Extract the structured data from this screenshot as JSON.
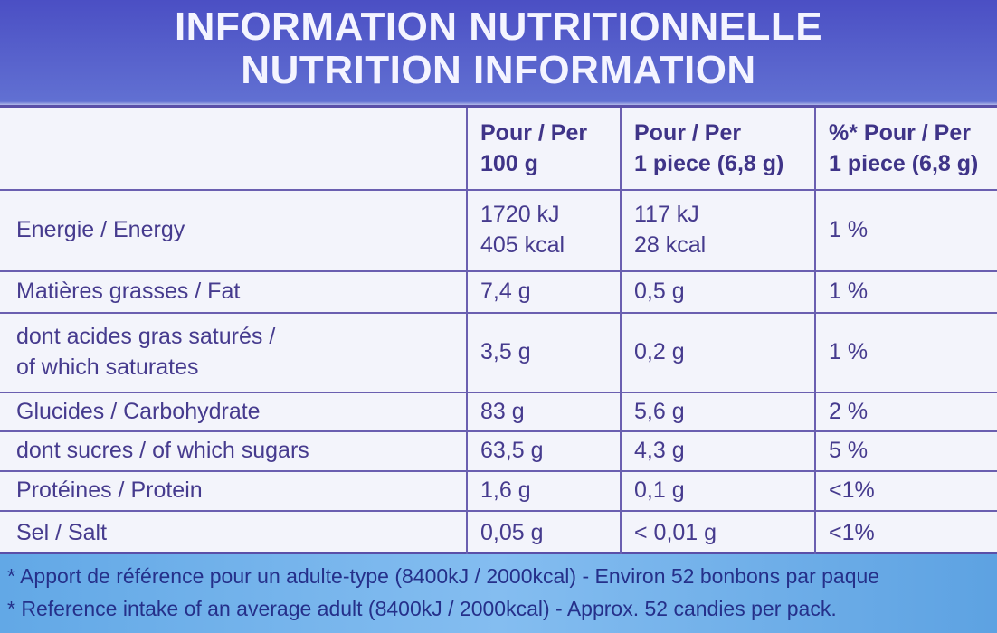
{
  "header": {
    "title_fr": "INFORMATION NUTRITIONNELLE",
    "title_en": "NUTRITION INFORMATION"
  },
  "table": {
    "columns": [
      [
        "Pour / Per",
        "100 g"
      ],
      [
        "Pour / Per",
        "1 piece (6,8 g)"
      ],
      [
        "%* Pour / Per",
        "1 piece (6,8 g)"
      ]
    ],
    "rows": [
      [
        [
          "Energie / Energy"
        ],
        [
          "1720 kJ",
          "405 kcal"
        ],
        [
          "117 kJ",
          "28 kcal"
        ],
        [
          "1 %"
        ]
      ],
      [
        [
          "Matières grasses / Fat"
        ],
        [
          "7,4 g"
        ],
        [
          "0,5 g"
        ],
        [
          "1 %"
        ]
      ],
      [
        [
          "dont acides gras saturés /",
          "of which saturates"
        ],
        [
          "3,5 g"
        ],
        [
          "0,2 g"
        ],
        [
          "1 %"
        ]
      ],
      [
        [
          "Glucides / Carbohydrate"
        ],
        [
          "83 g"
        ],
        [
          "5,6 g"
        ],
        [
          "2 %"
        ]
      ],
      [
        [
          "dont sucres / of which sugars"
        ],
        [
          "63,5 g"
        ],
        [
          "4,3 g"
        ],
        [
          "5 %"
        ]
      ],
      [
        [
          "Protéines / Protein"
        ],
        [
          "1,6 g"
        ],
        [
          "0,1 g"
        ],
        [
          "<1%"
        ]
      ],
      [
        [
          "Sel / Salt"
        ],
        [
          "0,05 g"
        ],
        [
          "< 0,01 g"
        ],
        [
          "<1%"
        ]
      ]
    ]
  },
  "footnotes": [
    "* Apport de référence pour un adulte-type (8400kJ / 2000kcal) - Environ 52 bonbons par paque",
    "* Reference intake of an average adult (8400kJ / 2000kcal) - Approx. 52 candies per pack."
  ]
}
